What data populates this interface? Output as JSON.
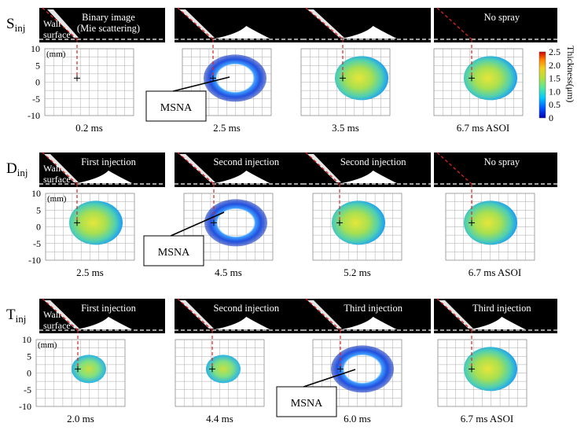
{
  "figure": {
    "axis_unit": "(mm)",
    "y_ticks": [
      "10",
      "5",
      "0",
      "-5",
      "-10"
    ],
    "colorbar": {
      "title": "Thickness(μm)",
      "ticks": [
        "2.5",
        "2.0",
        "1.5",
        "1.0",
        "0.5",
        "0"
      ],
      "colors": [
        "#0000b0",
        "#0050ff",
        "#00c8ff",
        "#50e8a0",
        "#b0e040",
        "#f0d020",
        "#ff8000",
        "#d00000"
      ]
    },
    "mask_color": "#000000",
    "injection_line_color": "#dd2222",
    "rows": [
      {
        "label_main": "S",
        "label_sub": "inj",
        "wall_label_1": "Wall",
        "wall_label_2": "surface",
        "callout": "MSNA",
        "panels": [
          {
            "header_1": "Binary image",
            "header_2": "(Mie scattering)",
            "time": "0.2 ms"
          },
          {
            "header_1": "",
            "header_2": "",
            "time": "2.5 ms"
          },
          {
            "header_1": "",
            "header_2": "",
            "time": "3.5 ms"
          },
          {
            "header_1": "No spray",
            "header_2": "",
            "time": "6.7 ms ASOI"
          }
        ]
      },
      {
        "label_main": "D",
        "label_sub": "inj",
        "wall_label_1": "Wall",
        "wall_label_2": "surface",
        "callout": "MSNA",
        "panels": [
          {
            "header_1": "First injection",
            "header_2": "",
            "time": "2.5 ms"
          },
          {
            "header_1": "Second injection",
            "header_2": "",
            "time": "4.5 ms"
          },
          {
            "header_1": "Second injection",
            "header_2": "",
            "time": "5.2 ms"
          },
          {
            "header_1": "No spray",
            "header_2": "",
            "time": "6.7 ms ASOI"
          }
        ]
      },
      {
        "label_main": "T",
        "label_sub": "inj",
        "wall_label_1": "Wall",
        "wall_label_2": "surface",
        "callout": "MSNA",
        "panels": [
          {
            "header_1": "First injection",
            "header_2": "",
            "time": "2.0 ms"
          },
          {
            "header_1": "Second injection",
            "header_2": "",
            "time": "4.4 ms"
          },
          {
            "header_1": "Third injection",
            "header_2": "",
            "time": "6.0 ms"
          },
          {
            "header_1": "Third injection",
            "header_2": "",
            "time": "6.7 ms ASOI"
          }
        ]
      }
    ]
  }
}
